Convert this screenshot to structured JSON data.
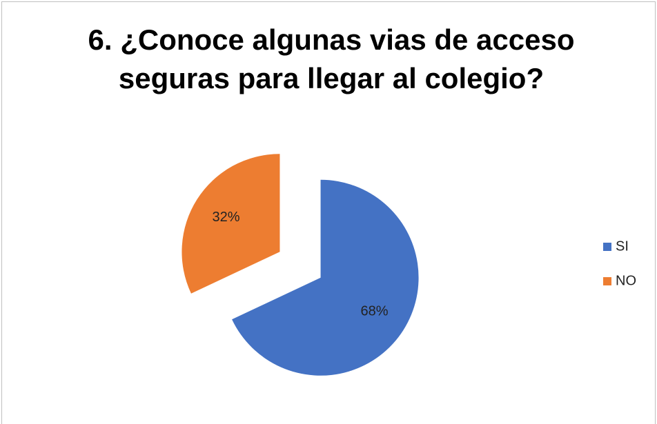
{
  "chart_data": {
    "type": "pie",
    "title": "6. ¿Conoce algunas vias de acceso seguras para llegar al colegio?",
    "categories": [
      "SI",
      "NO"
    ],
    "values": [
      68,
      32
    ],
    "value_labels": [
      "68%",
      "32%"
    ],
    "colors": [
      "#4472c4",
      "#ed7d31"
    ],
    "legend": "right"
  }
}
